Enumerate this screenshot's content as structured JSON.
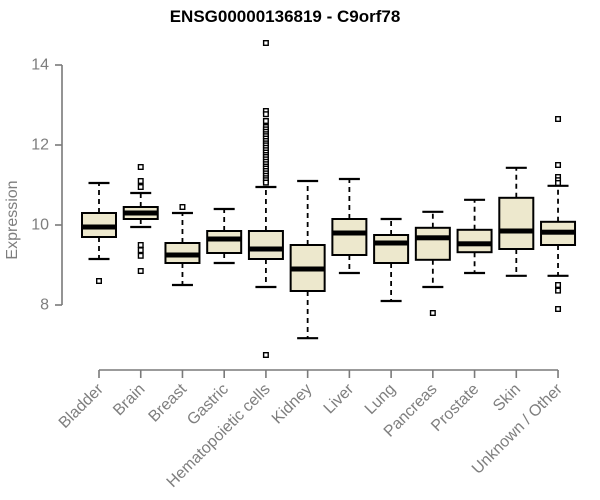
{
  "title": "ENSG00000136819 - C9orf78",
  "colors": {
    "background": "#ffffff",
    "title": "#000000",
    "axis": "#7a7a7a",
    "tick_label": "#7e7e7e",
    "box_fill": "#ede8cd",
    "box_border": "#000000",
    "median": "#000000",
    "whisker": "#000000",
    "outlier_fill": "#ffffff",
    "outlier_border": "#000000"
  },
  "chart_data": {
    "type": "boxplot",
    "title": "ENSG00000136819 - C9orf78",
    "xlabel": "",
    "ylabel": "Expression",
    "yticks": [
      8,
      10,
      12,
      14
    ],
    "ylim": [
      6.4,
      14.7
    ],
    "axis_value_range": [
      8,
      14
    ],
    "grid": false,
    "legend": "none",
    "x_labels_rotated_45": true,
    "categories": [
      "Bladder",
      "Brain",
      "Breast",
      "Gastric",
      "Hematopoietic cells",
      "Kidney",
      "Liver",
      "Lung",
      "Pancreas",
      "Prostate",
      "Skin",
      "Unknown / Other"
    ],
    "series": [
      {
        "label": "Bladder",
        "whisker_low": 9.15,
        "q1": 9.7,
        "median": 9.95,
        "q3": 10.3,
        "whisker_high": 11.05,
        "outliers": [
          8.6
        ]
      },
      {
        "label": "Brain",
        "whisker_low": 9.95,
        "q1": 10.15,
        "median": 10.3,
        "q3": 10.45,
        "whisker_high": 10.8,
        "outliers": [
          11.45,
          11.1,
          10.95,
          9.5,
          9.37,
          9.23,
          8.85
        ]
      },
      {
        "label": "Breast",
        "whisker_low": 8.5,
        "q1": 9.05,
        "median": 9.25,
        "q3": 9.55,
        "whisker_high": 10.3,
        "outliers": [
          10.45
        ]
      },
      {
        "label": "Gastric",
        "whisker_low": 9.05,
        "q1": 9.3,
        "median": 9.65,
        "q3": 9.85,
        "whisker_high": 10.4,
        "outliers": []
      },
      {
        "label": "Hematopoietic cells",
        "whisker_low": 8.45,
        "q1": 9.15,
        "median": 9.4,
        "q3": 9.85,
        "whisker_high": 10.95,
        "outliers": [
          14.55,
          12.85,
          12.77,
          12.6,
          12.45,
          12.39,
          12.33,
          12.27,
          12.22,
          12.16,
          12.1,
          12.04,
          11.99,
          11.93,
          11.87,
          11.81,
          11.75,
          11.7,
          11.64,
          11.58,
          11.52,
          11.46,
          11.41,
          11.35,
          11.29,
          11.23,
          11.17,
          11.12,
          11.06,
          6.75
        ]
      },
      {
        "label": "Kidney",
        "whisker_low": 7.17,
        "q1": 8.35,
        "median": 8.9,
        "q3": 9.5,
        "whisker_high": 11.1,
        "outliers": []
      },
      {
        "label": "Liver",
        "whisker_low": 8.8,
        "q1": 9.25,
        "median": 9.8,
        "q3": 10.15,
        "whisker_high": 11.15,
        "outliers": []
      },
      {
        "label": "Lung",
        "whisker_low": 8.1,
        "q1": 9.05,
        "median": 9.55,
        "q3": 9.75,
        "whisker_high": 10.15,
        "outliers": []
      },
      {
        "label": "Pancreas",
        "whisker_low": 8.45,
        "q1": 9.13,
        "median": 9.68,
        "q3": 9.93,
        "whisker_high": 10.33,
        "outliers": [
          7.8
        ]
      },
      {
        "label": "Prostate",
        "whisker_low": 8.8,
        "q1": 9.32,
        "median": 9.53,
        "q3": 9.88,
        "whisker_high": 10.63,
        "outliers": []
      },
      {
        "label": "Skin",
        "whisker_low": 8.73,
        "q1": 9.4,
        "median": 9.85,
        "q3": 10.68,
        "whisker_high": 11.43,
        "outliers": []
      },
      {
        "label": "Unknown / Other",
        "whisker_low": 8.73,
        "q1": 9.5,
        "median": 9.82,
        "q3": 10.08,
        "whisker_high": 10.98,
        "outliers": [
          12.65,
          11.5,
          11.2,
          11.12,
          11.05,
          8.5,
          8.36,
          7.9
        ]
      }
    ]
  }
}
